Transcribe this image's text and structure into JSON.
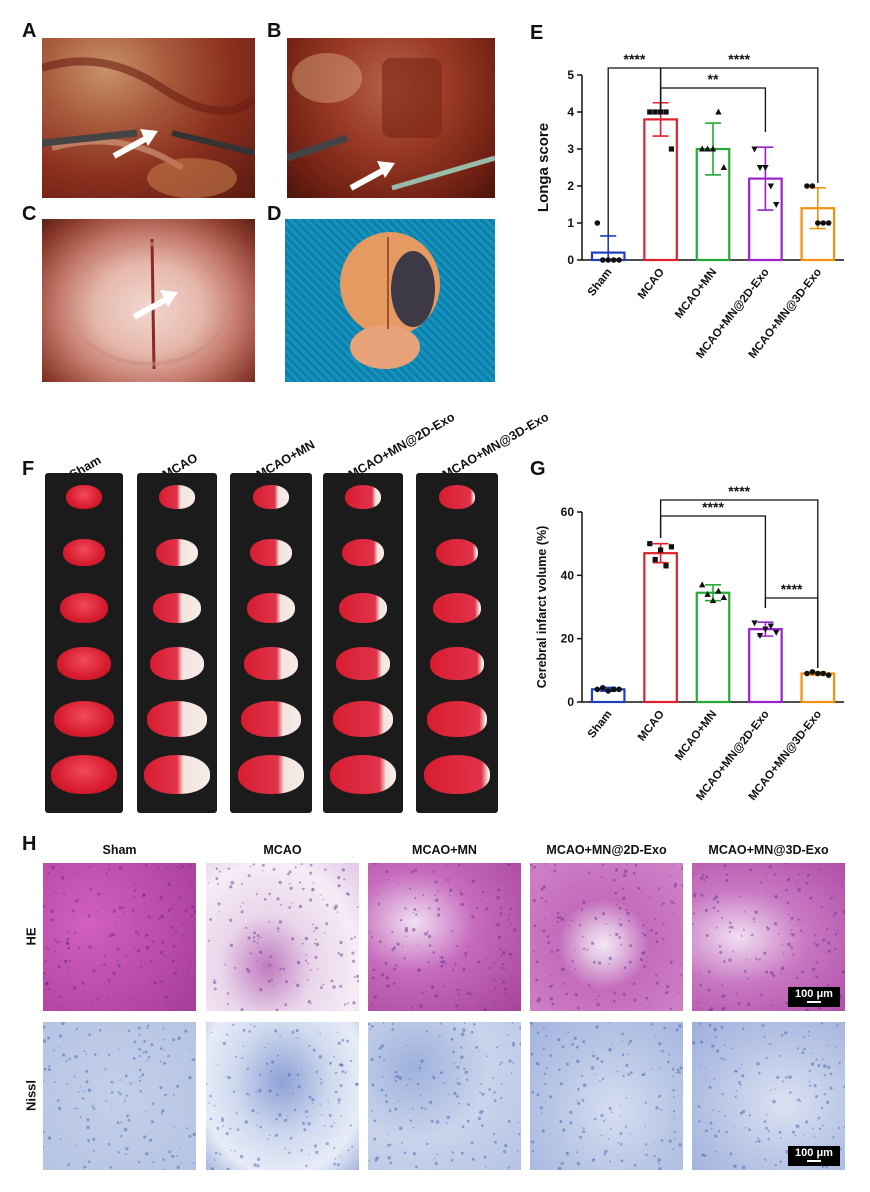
{
  "panels": {
    "A": "A",
    "B": "B",
    "C": "C",
    "D": "D",
    "E": "E",
    "F": "F",
    "G": "G",
    "H": "H"
  },
  "groups": [
    "Sham",
    "MCAO",
    "MCAO+MN",
    "MCAO+MN@2D-Exo",
    "MCAO+MN@3D-Exo"
  ],
  "colors": {
    "Sham": "#1f3fbf",
    "MCAO": "#e0202a",
    "MCAO+MN": "#22aa33",
    "MCAO+MN@2D-Exo": "#9a22c8",
    "MCAO+MN@3D-Exo": "#f5900f"
  },
  "stain_rows": [
    "HE",
    "Nissl"
  ],
  "scale_bar": "100 μm",
  "chart_data": [
    {
      "type": "bar",
      "panel": "E",
      "categories": [
        "Sham",
        "MCAO",
        "MCAO+MN",
        "MCAO+MN@2D-Exo",
        "MCAO+MN@3D-Exo"
      ],
      "values": [
        0.2,
        3.8,
        3.0,
        2.2,
        1.4
      ],
      "errors": [
        0.45,
        0.45,
        0.7,
        0.85,
        0.55
      ],
      "points": [
        [
          1,
          0,
          0,
          0,
          0
        ],
        [
          4,
          4,
          4,
          4,
          3
        ],
        [
          3,
          3,
          3,
          4,
          2.5
        ],
        [
          3,
          2.5,
          2.5,
          2,
          1.5
        ],
        [
          2,
          2,
          1,
          1,
          1
        ]
      ],
      "ylabel": "Longa  score",
      "ylim": [
        0,
        5
      ],
      "yticks": [
        0,
        1,
        2,
        3,
        4,
        5
      ],
      "significance": [
        {
          "from": 0,
          "to": 1,
          "label": "****"
        },
        {
          "from": 1,
          "to": 3,
          "label": "**"
        },
        {
          "from": 1,
          "to": 4,
          "label": "****"
        }
      ]
    },
    {
      "type": "bar",
      "panel": "G",
      "categories": [
        "Sham",
        "MCAO",
        "MCAO+MN",
        "MCAO+MN@2D-Exo",
        "MCAO+MN@3D-Exo"
      ],
      "values": [
        4,
        47,
        34.5,
        23,
        9
      ],
      "errors": [
        0.6,
        3,
        2.5,
        2.2,
        0.5
      ],
      "points": [
        [
          4,
          4.5,
          3.5,
          4,
          4
        ],
        [
          50,
          45,
          48,
          43,
          49
        ],
        [
          37,
          34,
          32,
          35,
          33
        ],
        [
          25,
          21,
          23,
          24,
          22
        ],
        [
          9,
          9.5,
          9,
          9,
          8.5
        ]
      ],
      "ylabel": "Cerebral infarct volume (%)",
      "ylim": [
        0,
        60
      ],
      "yticks": [
        0,
        20,
        40,
        60
      ],
      "significance": [
        {
          "from": 1,
          "to": 3,
          "label": "****"
        },
        {
          "from": 1,
          "to": 4,
          "label": "****"
        },
        {
          "from": 3,
          "to": 4,
          "label": "****"
        }
      ]
    }
  ]
}
